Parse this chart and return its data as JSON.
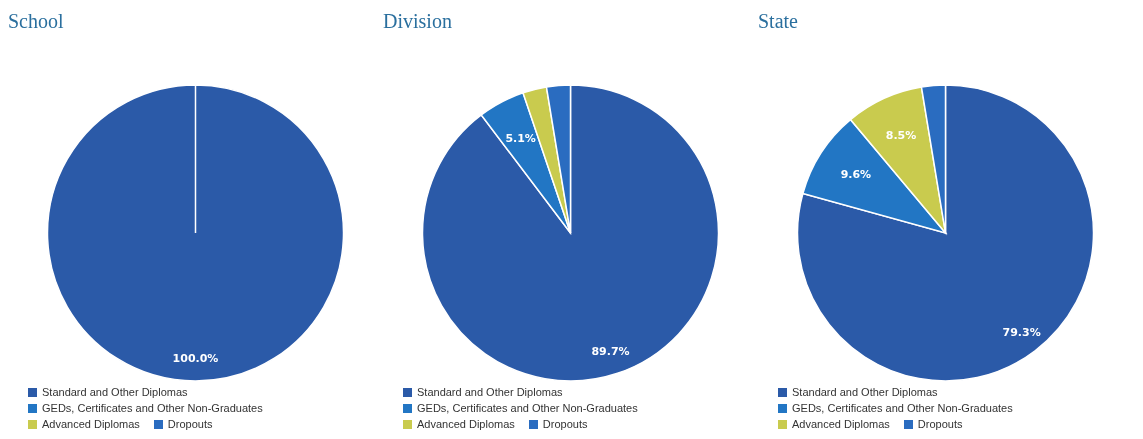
{
  "chart_data": [
    {
      "type": "pie",
      "title": "School",
      "categories": [
        "Standard and Other Diplomas",
        "GEDs, Certificates and Other Non-Graduates",
        "Advanced Diplomas",
        "Dropouts"
      ],
      "values": [
        100,
        0,
        0,
        0
      ],
      "colors": [
        "#2b5aa8",
        "#2276c4",
        "#c9cb4e",
        "#2a6cc0"
      ],
      "value_labels": [
        "100.0%",
        null,
        null,
        null
      ],
      "legend": "bottom"
    },
    {
      "type": "pie",
      "title": "Division",
      "categories": [
        "Standard and Other Diplomas",
        "GEDs, Certificates and Other Non-Graduates",
        "Advanced Diplomas",
        "Dropouts"
      ],
      "values": [
        89.7,
        5.1,
        2.6,
        2.6
      ],
      "colors": [
        "#2b5aa8",
        "#2276c4",
        "#c9cb4e",
        "#2a6cc0"
      ],
      "value_labels": [
        "89.7%",
        "5.1%",
        null,
        null
      ],
      "legend": "bottom"
    },
    {
      "type": "pie",
      "title": "State",
      "categories": [
        "Standard and Other Diplomas",
        "GEDs, Certificates and Other Non-Graduates",
        "Advanced Diplomas",
        "Dropouts"
      ],
      "values": [
        79.3,
        9.6,
        8.5,
        2.6
      ],
      "colors": [
        "#2b5aa8",
        "#2276c4",
        "#c9cb4e",
        "#2a6cc0"
      ],
      "value_labels": [
        "79.3%",
        "9.6%",
        "8.5%",
        null
      ],
      "legend": "bottom"
    }
  ]
}
